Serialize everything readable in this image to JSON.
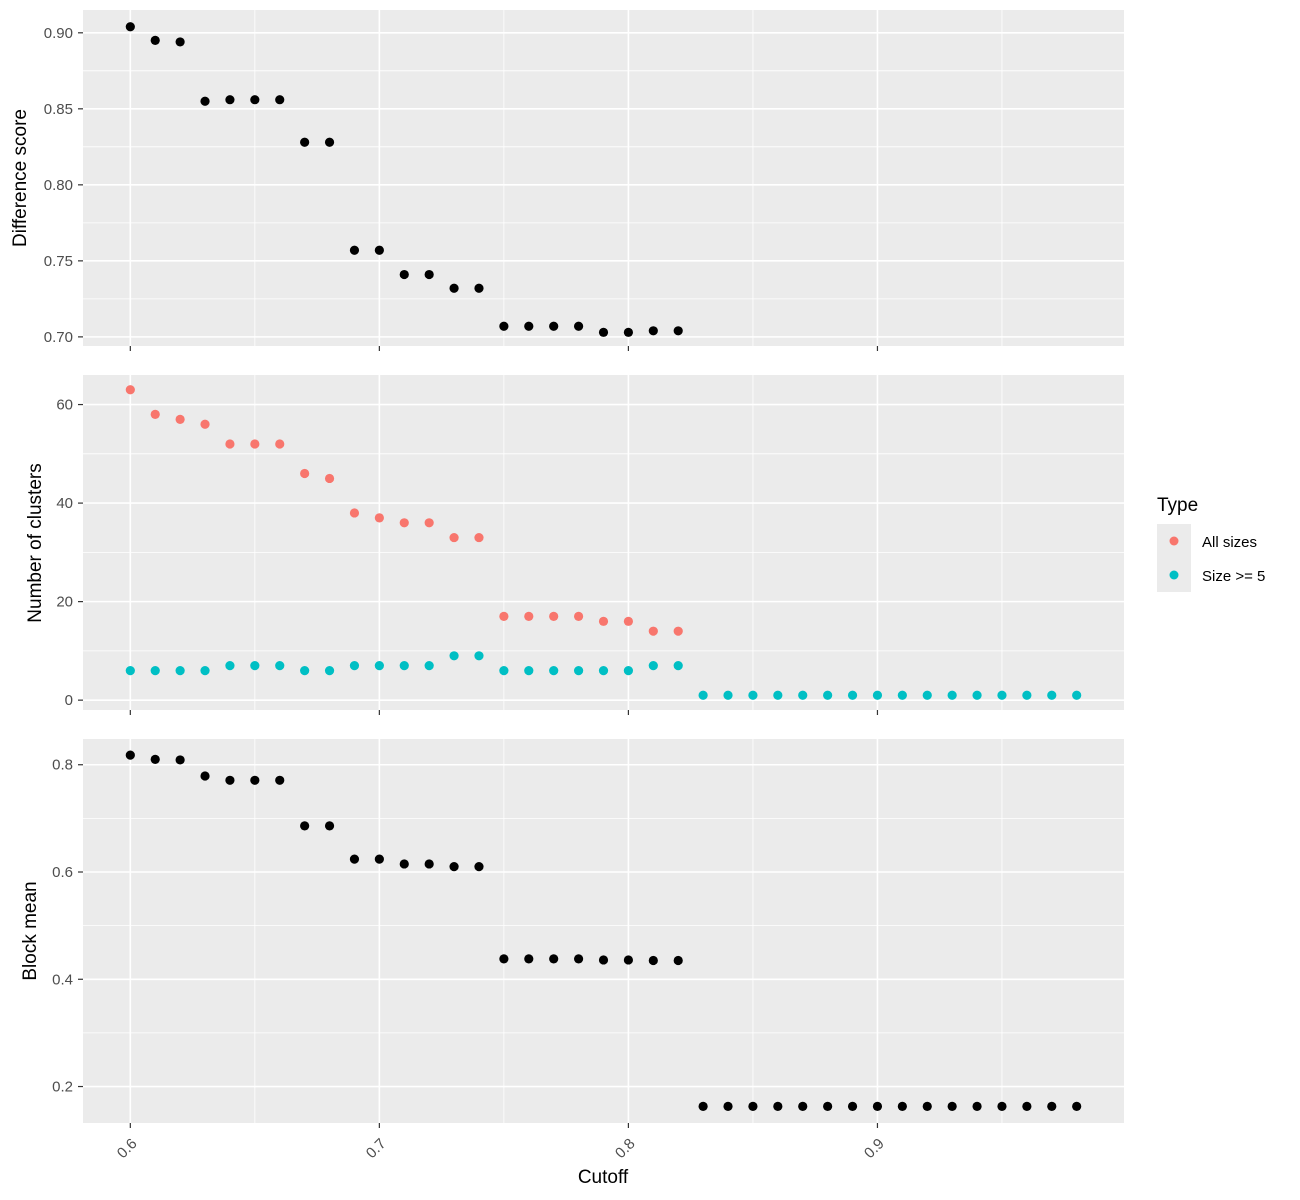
{
  "chart_data": {
    "type": "scatter",
    "shared_x": {
      "label": "Cutoff",
      "range": [
        0.581,
        0.999
      ],
      "ticks": [
        0.6,
        0.7,
        0.8,
        0.9
      ],
      "tick_labels": [
        "0.6",
        "0.7",
        "0.8",
        "0.9"
      ],
      "tick_label_rotation_deg": -45
    },
    "grid": true,
    "legend": {
      "title": "Type",
      "placement": "right",
      "entries": [
        {
          "name": "All sizes",
          "color": "#F8766D"
        },
        {
          "name": "Size >= 5",
          "color": "#00BFC4"
        }
      ]
    },
    "colors": {
      "panel_background": "#EBEBEB",
      "grid_major": "#FFFFFF",
      "points_default": "#000000"
    },
    "panels": [
      {
        "ylabel": "Difference score",
        "ylim": [
          0.694,
          0.915
        ],
        "yticks": [
          0.7,
          0.75,
          0.8,
          0.85,
          0.9
        ],
        "ytick_labels": [
          "0.70",
          "0.75",
          "0.80",
          "0.85",
          "0.90"
        ],
        "series": [
          {
            "color": "#000000",
            "x": [
              0.6,
              0.61,
              0.62,
              0.63,
              0.64,
              0.65,
              0.66,
              0.67,
              0.68,
              0.69,
              0.7,
              0.71,
              0.72,
              0.73,
              0.74,
              0.75,
              0.76,
              0.77,
              0.78,
              0.79,
              0.8,
              0.81,
              0.82
            ],
            "y": [
              0.904,
              0.895,
              0.894,
              0.855,
              0.856,
              0.856,
              0.856,
              0.828,
              0.828,
              0.757,
              0.757,
              0.741,
              0.741,
              0.732,
              0.732,
              0.707,
              0.707,
              0.707,
              0.707,
              0.703,
              0.703,
              0.704,
              0.704
            ]
          }
        ]
      },
      {
        "ylabel": "Number of clusters",
        "ylim": [
          -2,
          66
        ],
        "yticks": [
          0,
          20,
          40,
          60
        ],
        "ytick_labels": [
          "0",
          "20",
          "40",
          "60"
        ],
        "series": [
          {
            "name": "All sizes",
            "color": "#F8766D",
            "x": [
              0.6,
              0.61,
              0.62,
              0.63,
              0.64,
              0.65,
              0.66,
              0.67,
              0.68,
              0.69,
              0.7,
              0.71,
              0.72,
              0.73,
              0.74,
              0.75,
              0.76,
              0.77,
              0.78,
              0.79,
              0.8,
              0.81,
              0.82
            ],
            "y": [
              63,
              58,
              57,
              56,
              52,
              52,
              52,
              46,
              45,
              38,
              37,
              36,
              36,
              33,
              33,
              17,
              17,
              17,
              17,
              16,
              16,
              14,
              14
            ]
          },
          {
            "name": "Size >= 5",
            "color": "#00BFC4",
            "x": [
              0.6,
              0.61,
              0.62,
              0.63,
              0.64,
              0.65,
              0.66,
              0.67,
              0.68,
              0.69,
              0.7,
              0.71,
              0.72,
              0.73,
              0.74,
              0.75,
              0.76,
              0.77,
              0.78,
              0.79,
              0.8,
              0.81,
              0.82,
              0.83,
              0.84,
              0.85,
              0.86,
              0.87,
              0.88,
              0.89,
              0.9,
              0.91,
              0.92,
              0.93,
              0.94,
              0.95,
              0.96,
              0.97,
              0.98
            ],
            "y": [
              6,
              6,
              6,
              6,
              7,
              7,
              7,
              6,
              6,
              7,
              7,
              7,
              7,
              9,
              9,
              6,
              6,
              6,
              6,
              6,
              6,
              7,
              7,
              1,
              1,
              1,
              1,
              1,
              1,
              1,
              1,
              1,
              1,
              1,
              1,
              1,
              1,
              1,
              1
            ]
          }
        ]
      },
      {
        "ylabel": "Block mean",
        "ylim": [
          0.132,
          0.848
        ],
        "yticks": [
          0.2,
          0.4,
          0.6,
          0.8
        ],
        "ytick_labels": [
          "0.2",
          "0.4",
          "0.6",
          "0.8"
        ],
        "series": [
          {
            "color": "#000000",
            "x": [
              0.6,
              0.61,
              0.62,
              0.63,
              0.64,
              0.65,
              0.66,
              0.67,
              0.68,
              0.69,
              0.7,
              0.71,
              0.72,
              0.73,
              0.74,
              0.75,
              0.76,
              0.77,
              0.78,
              0.79,
              0.8,
              0.81,
              0.82,
              0.83,
              0.84,
              0.85,
              0.86,
              0.87,
              0.88,
              0.89,
              0.9,
              0.91,
              0.92,
              0.93,
              0.94,
              0.95,
              0.96,
              0.97,
              0.98
            ],
            "y": [
              0.818,
              0.81,
              0.809,
              0.779,
              0.771,
              0.771,
              0.771,
              0.686,
              0.686,
              0.624,
              0.624,
              0.615,
              0.615,
              0.61,
              0.61,
              0.438,
              0.438,
              0.438,
              0.438,
              0.436,
              0.436,
              0.435,
              0.435,
              0.163,
              0.163,
              0.163,
              0.163,
              0.163,
              0.163,
              0.163,
              0.163,
              0.163,
              0.163,
              0.163,
              0.163,
              0.163,
              0.163,
              0.163,
              0.163
            ]
          }
        ]
      }
    ]
  }
}
